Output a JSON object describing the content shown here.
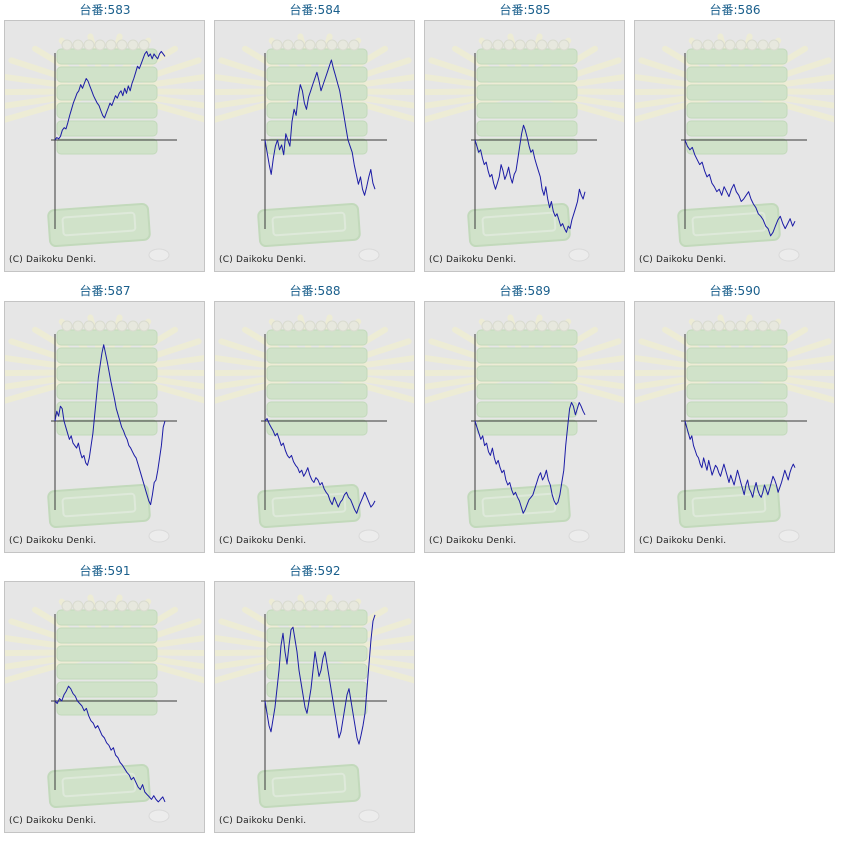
{
  "page": {
    "background": "#ffffff"
  },
  "theme": {
    "title_color": "#1a5f8c",
    "line_color": "#1c1ca6",
    "axis_color": "#3a3a3a",
    "panel_bg": "#e6e6e6",
    "decor_green": "#bfe0b3",
    "decor_cream": "#f3f1c8"
  },
  "copyright_text": "(C) Daikoku Denki.",
  "chart_data": [
    {
      "type": "line",
      "title": "台番:583",
      "series": [
        {
          "values": [
            0,
            2,
            1,
            3,
            8,
            10,
            9,
            14,
            20,
            25,
            30,
            34,
            38,
            40,
            45,
            42,
            46,
            50,
            48,
            44,
            40,
            36,
            33,
            30,
            28,
            24,
            20,
            18,
            22,
            26,
            30,
            28,
            32,
            36,
            34,
            38,
            40,
            36,
            42,
            38,
            44,
            40,
            46,
            50,
            55,
            60,
            58,
            62,
            66,
            70,
            72,
            68,
            70,
            66,
            70,
            68,
            66,
            70,
            72,
            70,
            68
          ]
        }
      ]
    },
    {
      "type": "line",
      "title": "台番:584",
      "series": [
        {
          "values": [
            0,
            -10,
            -20,
            -28,
            -15,
            -5,
            0,
            -8,
            -4,
            -12,
            5,
            0,
            -5,
            15,
            25,
            20,
            35,
            45,
            40,
            30,
            25,
            35,
            40,
            45,
            50,
            55,
            48,
            40,
            45,
            50,
            55,
            60,
            65,
            58,
            52,
            46,
            40,
            30,
            20,
            10,
            0,
            -5,
            -10,
            -20,
            -28,
            -36,
            -30,
            -40,
            -45,
            -38,
            -30,
            -24,
            -35,
            -40
          ]
        }
      ]
    },
    {
      "type": "line",
      "title": "台番:585",
      "series": [
        {
          "values": [
            0,
            -5,
            -10,
            -8,
            -15,
            -20,
            -18,
            -25,
            -30,
            -28,
            -35,
            -40,
            -35,
            -30,
            -20,
            -25,
            -32,
            -28,
            -22,
            -30,
            -35,
            -28,
            -25,
            -15,
            -5,
            5,
            12,
            8,
            2,
            -5,
            -10,
            -8,
            -15,
            -20,
            -25,
            -30,
            -40,
            -45,
            -38,
            -48,
            -55,
            -50,
            -58,
            -62,
            -60,
            -65,
            -70,
            -68,
            -72,
            -75,
            -70,
            -72,
            -65,
            -60,
            -55,
            -50,
            -40,
            -45,
            -48,
            -42
          ]
        }
      ]
    },
    {
      "type": "line",
      "title": "台番:586",
      "series": [
        {
          "values": [
            0,
            -5,
            -8,
            -6,
            -12,
            -16,
            -20,
            -18,
            -25,
            -30,
            -28,
            -35,
            -38,
            -42,
            -40,
            -45,
            -38,
            -42,
            -46,
            -40,
            -36,
            -42,
            -45,
            -50,
            -48,
            -45,
            -42,
            -48,
            -52,
            -55,
            -60,
            -62,
            -65,
            -70,
            -72,
            -78,
            -75,
            -70,
            -65,
            -62,
            -68,
            -72,
            -68,
            -64,
            -70,
            -66
          ]
        }
      ]
    },
    {
      "type": "line",
      "title": "台番:587",
      "series": [
        {
          "values": [
            0,
            8,
            4,
            12,
            10,
            0,
            -5,
            -10,
            -15,
            -12,
            -18,
            -20,
            -22,
            -18,
            -25,
            -30,
            -28,
            -34,
            -36,
            -30,
            -20,
            -10,
            5,
            20,
            35,
            45,
            55,
            62,
            55,
            48,
            40,
            32,
            25,
            18,
            10,
            5,
            0,
            -5,
            -8,
            -12,
            -15,
            -20,
            -22,
            -25,
            -28,
            -30,
            -35,
            -40,
            -45,
            -50,
            -55,
            -60,
            -65,
            -68,
            -60,
            -50,
            -48,
            -40,
            -30,
            -20,
            -5,
            0
          ]
        }
      ]
    },
    {
      "type": "line",
      "title": "台番:588",
      "series": [
        {
          "values": [
            0,
            2,
            -2,
            -5,
            -8,
            -12,
            -10,
            -15,
            -20,
            -18,
            -24,
            -28,
            -30,
            -28,
            -33,
            -36,
            -38,
            -42,
            -40,
            -45,
            -42,
            -38,
            -44,
            -48,
            -50,
            -46,
            -48,
            -52,
            -50,
            -55,
            -58,
            -60,
            -65,
            -68,
            -62,
            -66,
            -70,
            -66,
            -64,
            -60,
            -58,
            -62,
            -64,
            -68,
            -72,
            -75,
            -70,
            -66,
            -62,
            -58,
            -62,
            -66,
            -70,
            -68,
            -65
          ]
        }
      ]
    },
    {
      "type": "line",
      "title": "台番:589",
      "series": [
        {
          "values": [
            0,
            -5,
            -10,
            -15,
            -12,
            -20,
            -18,
            -25,
            -28,
            -22,
            -30,
            -35,
            -32,
            -38,
            -42,
            -40,
            -48,
            -52,
            -50,
            -56,
            -60,
            -58,
            -62,
            -65,
            -70,
            -75,
            -72,
            -68,
            -64,
            -62,
            -60,
            -55,
            -50,
            -45,
            -42,
            -48,
            -45,
            -40,
            -48,
            -52,
            -60,
            -65,
            -68,
            -66,
            -60,
            -50,
            -40,
            -20,
            -5,
            10,
            15,
            12,
            5,
            10,
            15,
            12,
            8,
            5
          ]
        }
      ]
    },
    {
      "type": "line",
      "title": "台番:590",
      "series": [
        {
          "values": [
            0,
            -5,
            -10,
            -15,
            -12,
            -20,
            -24,
            -28,
            -30,
            -35,
            -38,
            -30,
            -35,
            -40,
            -32,
            -38,
            -44,
            -40,
            -36,
            -38,
            -42,
            -45,
            -40,
            -35,
            -40,
            -45,
            -50,
            -44,
            -48,
            -52,
            -46,
            -40,
            -45,
            -50,
            -55,
            -60,
            -52,
            -48,
            -55,
            -58,
            -62,
            -55,
            -50,
            -56,
            -60,
            -62,
            -58,
            -52,
            -56,
            -60,
            -55,
            -50,
            -45,
            -48,
            -52,
            -58,
            -54,
            -50,
            -45,
            -40,
            -44,
            -48,
            -42,
            -38,
            -35,
            -38
          ]
        }
      ]
    },
    {
      "type": "line",
      "title": "台番:591",
      "series": [
        {
          "values": [
            0,
            -2,
            2,
            0,
            5,
            8,
            12,
            10,
            6,
            4,
            0,
            -2,
            -4,
            -8,
            -6,
            -12,
            -16,
            -18,
            -22,
            -20,
            -24,
            -28,
            -30,
            -34,
            -36,
            -40,
            -38,
            -44,
            -46,
            -50,
            -52,
            -55,
            -58,
            -60,
            -64,
            -62,
            -66,
            -70,
            -72,
            -68,
            -74,
            -76,
            -78,
            -80,
            -77,
            -80,
            -82,
            -80,
            -78,
            -82
          ]
        }
      ]
    },
    {
      "type": "line",
      "title": "台番:592",
      "series": [
        {
          "values": [
            0,
            -10,
            -20,
            -25,
            -15,
            -5,
            10,
            25,
            45,
            55,
            40,
            30,
            45,
            58,
            60,
            50,
            40,
            25,
            15,
            5,
            -5,
            -10,
            0,
            10,
            25,
            40,
            30,
            20,
            25,
            35,
            40,
            30,
            20,
            10,
            0,
            -10,
            -20,
            -30,
            -25,
            -15,
            -5,
            5,
            10,
            0,
            -10,
            -20,
            -30,
            -35,
            -28,
            -20,
            -10,
            10,
            30,
            50,
            65,
            70
          ]
        }
      ]
    }
  ]
}
